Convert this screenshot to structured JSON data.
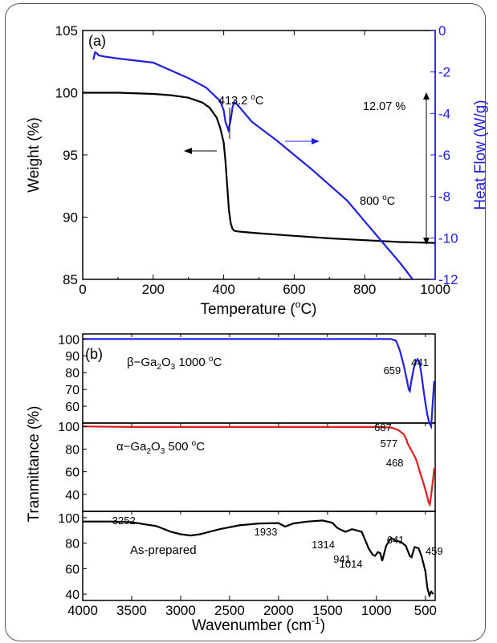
{
  "chart_data": [
    {
      "type": "line",
      "panel_label": "(a)",
      "xlabel": "Temperature (",
      "xlabel_degree": "o",
      "xlabel_unit": "C)",
      "ylabel_left": "Weight (%)",
      "ylabel_right": "Heat Flow (W/g)",
      "xlim": [
        0,
        1000
      ],
      "ylim_left": [
        85,
        105
      ],
      "ylim_right": [
        -12,
        0
      ],
      "x_ticks": [
        "0",
        "200",
        "400",
        "600",
        "800",
        "1000"
      ],
      "y_left_ticks": [
        "85",
        "90",
        "95",
        "100",
        "105"
      ],
      "y_right_ticks": [
        "0",
        "-2",
        "-4",
        "-6",
        "-8",
        "-10",
        "-12"
      ],
      "series": [
        {
          "color": "#000000",
          "axis": "left",
          "x": [
            0,
            100,
            200,
            250,
            300,
            340,
            360,
            380,
            390,
            400,
            405,
            410,
            415,
            420,
            425,
            430,
            440,
            460,
            500,
            600,
            700,
            800,
            900,
            1000
          ],
          "y": [
            100.0,
            100.0,
            99.9,
            99.8,
            99.6,
            99.2,
            98.8,
            98.0,
            97.2,
            96.0,
            94.5,
            92.5,
            90.5,
            89.5,
            89.05,
            88.9,
            88.85,
            88.8,
            88.7,
            88.5,
            88.3,
            88.15,
            88.0,
            87.93
          ]
        },
        {
          "color": "#1f1fe0",
          "axis": "right",
          "x": [
            30,
            35,
            40,
            45,
            60,
            100,
            200,
            300,
            350,
            390,
            400,
            405,
            413.2,
            420,
            425,
            430,
            440,
            480,
            550,
            650,
            750,
            800,
            850,
            900,
            950,
            1000
          ],
          "y": [
            -1.4,
            -1.05,
            -1.1,
            -1.2,
            -1.25,
            -1.35,
            -1.55,
            -2.3,
            -2.75,
            -3.4,
            -3.85,
            -4.4,
            -4.8,
            -4.3,
            -3.7,
            -3.45,
            -3.6,
            -4.4,
            -5.3,
            -6.7,
            -8.2,
            -9.2,
            -10.2,
            -11.2,
            -12.3,
            -13.4
          ]
        }
      ],
      "annotations": {
        "peak_value": "413.2",
        "peak_unit": "C",
        "end_value": "800",
        "end_unit": "C",
        "degree": "o",
        "mass_loss": "12.07 %"
      }
    },
    {
      "type": "line",
      "panel_label": "(b)",
      "xlabel": "Wavenumber (cm",
      "xlabel_sup": "-1",
      "xlabel_close": ")",
      "ylabel": "Tranmittance (%)",
      "xlim": [
        4000,
        400
      ],
      "x_ticks": [
        "4000",
        "3500",
        "3000",
        "2500",
        "2000",
        "1500",
        "1000",
        "500"
      ],
      "x_tick_values": [
        4000,
        3500,
        3000,
        2500,
        2000,
        1500,
        1000,
        500
      ],
      "subplots": [
        {
          "name_prefix": "β−Ga",
          "name_sub": "2",
          "name_mid": "O",
          "name_sub2": "3",
          "name_suffix": " 1000 ",
          "name_deg": "o",
          "name_unit": "C",
          "color": "#1f1fe0",
          "ylim": [
            50,
            103
          ],
          "y_ticks": [
            100,
            90,
            80,
            70,
            60
          ],
          "y_tick_labels": [
            "100",
            "90",
            "80",
            "70",
            "60"
          ],
          "x": [
            4000,
            3500,
            3000,
            2500,
            2000,
            1500,
            1000,
            850,
            800,
            760,
            720,
            690,
            670,
            659,
            640,
            610,
            580,
            560,
            540,
            520,
            500,
            480,
            460,
            450,
            441,
            430,
            420,
            410
          ],
          "y": [
            100,
            100,
            100,
            100,
            100,
            100,
            100,
            100,
            99,
            93,
            84,
            76,
            70,
            69,
            76,
            85,
            88,
            86,
            79,
            70,
            62,
            55,
            50,
            49,
            48,
            57,
            67,
            75
          ],
          "peaks": [
            {
              "x": 659,
              "label": "659"
            },
            {
              "x": 441,
              "label": "441"
            }
          ]
        },
        {
          "name_prefix": "α−Ga",
          "name_sub": "2",
          "name_mid": "O",
          "name_sub2": "3",
          "name_suffix": " 500 ",
          "name_deg": "o",
          "name_unit": "C",
          "color": "#e01f1f",
          "ylim": [
            25,
            103
          ],
          "y_ticks": [
            100,
            80,
            60,
            40
          ],
          "y_tick_labels": [
            "100",
            "80",
            "60",
            "40"
          ],
          "x": [
            4000,
            3500,
            3000,
            2500,
            2000,
            1500,
            1000,
            850,
            780,
            720,
            690,
            687,
            650,
            600,
            577,
            550,
            520,
            500,
            480,
            468,
            455,
            440,
            420,
            410
          ],
          "y": [
            100,
            99.5,
            99.5,
            99.5,
            99.5,
            99.5,
            99.5,
            99,
            97,
            93,
            88,
            86,
            80,
            72,
            66,
            58,
            50,
            44,
            38,
            33,
            31,
            40,
            55,
            63
          ],
          "peaks": [
            {
              "x": 687,
              "label": "687"
            },
            {
              "x": 577,
              "label": "577"
            },
            {
              "x": 468,
              "label": "468"
            }
          ]
        },
        {
          "name": "As-prepared",
          "color": "#000000",
          "ylim": [
            35,
            105
          ],
          "y_ticks": [
            100,
            80,
            60,
            40
          ],
          "y_tick_labels": [
            "100",
            "80",
            "60",
            "40"
          ],
          "x": [
            4000,
            3700,
            3500,
            3300,
            3252,
            3200,
            3100,
            3000,
            2900,
            2800,
            2600,
            2400,
            2200,
            2000,
            1933,
            1850,
            1700,
            1550,
            1450,
            1400,
            1350,
            1314,
            1250,
            1150,
            1080,
            1040,
            1014,
            985,
            960,
            941,
            900,
            850,
            800,
            750,
            700,
            660,
            641,
            610,
            570,
            540,
            500,
            480,
            459,
            440,
            420
          ],
          "y": [
            97,
            97,
            96.5,
            94,
            93.5,
            92,
            89,
            87,
            86,
            87,
            91,
            94,
            95.5,
            95.8,
            93,
            95.5,
            97,
            97.8,
            96,
            92,
            90,
            89,
            91,
            89,
            76,
            71,
            70,
            73,
            72,
            66,
            78,
            84,
            82,
            81,
            78,
            70,
            69,
            77,
            76,
            70,
            58,
            45,
            39,
            42,
            40
          ],
          "peaks": [
            {
              "x": 3252,
              "label": "3252"
            },
            {
              "x": 1933,
              "label": "1933"
            },
            {
              "x": 1314,
              "label": "1314"
            },
            {
              "x": 1014,
              "label": "1014"
            },
            {
              "x": 941,
              "label": "941"
            },
            {
              "x": 641,
              "label": "641"
            },
            {
              "x": 459,
              "label": "459"
            }
          ]
        }
      ]
    }
  ]
}
